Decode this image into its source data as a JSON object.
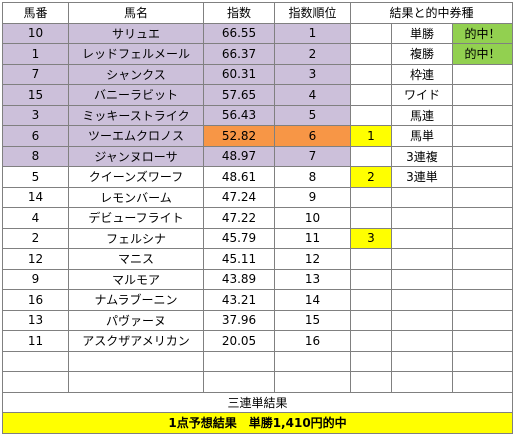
{
  "headers": {
    "col_no": "馬番",
    "col_name": "馬名",
    "col_index": "指数",
    "col_rank": "指数順位",
    "col_result": "結果と的中券種"
  },
  "rows": [
    {
      "no": "10",
      "name": "サリュエ",
      "index": "66.55",
      "rank": "1",
      "place": "",
      "ticket": "単勝",
      "hit": "的中！"
    },
    {
      "no": "1",
      "name": "レッドフェルメール",
      "index": "66.37",
      "rank": "2",
      "place": "",
      "ticket": "複勝",
      "hit": "的中！"
    },
    {
      "no": "7",
      "name": "シャンクス",
      "index": "60.31",
      "rank": "3",
      "place": "",
      "ticket": "枠連",
      "hit": ""
    },
    {
      "no": "15",
      "name": "バニーラビット",
      "index": "57.65",
      "rank": "4",
      "place": "",
      "ticket": "ワイド",
      "hit": ""
    },
    {
      "no": "3",
      "name": "ミッキーストライク",
      "index": "56.43",
      "rank": "5",
      "place": "",
      "ticket": "馬連",
      "hit": ""
    },
    {
      "no": "6",
      "name": "ツーエムクロノス",
      "index": "52.82",
      "rank": "6",
      "place": "1",
      "ticket": "馬単",
      "hit": ""
    },
    {
      "no": "8",
      "name": "ジャンヌローサ",
      "index": "48.97",
      "rank": "7",
      "place": "",
      "ticket": "3連複",
      "hit": ""
    },
    {
      "no": "5",
      "name": "クイーンズワーフ",
      "index": "48.61",
      "rank": "8",
      "place": "2",
      "ticket": "3連単",
      "hit": ""
    },
    {
      "no": "14",
      "name": "レモンバーム",
      "index": "47.24",
      "rank": "9",
      "place": "",
      "ticket": "",
      "hit": ""
    },
    {
      "no": "4",
      "name": "デビューフライト",
      "index": "47.22",
      "rank": "10",
      "place": "",
      "ticket": "",
      "hit": ""
    },
    {
      "no": "2",
      "name": "フェルシナ",
      "index": "45.79",
      "rank": "11",
      "place": "3",
      "ticket": "",
      "hit": ""
    },
    {
      "no": "12",
      "name": "マニス",
      "index": "45.11",
      "rank": "12",
      "place": "",
      "ticket": "",
      "hit": ""
    },
    {
      "no": "9",
      "name": "マルモア",
      "index": "43.89",
      "rank": "13",
      "place": "",
      "ticket": "",
      "hit": ""
    },
    {
      "no": "16",
      "name": "ナムラブーニン",
      "index": "43.21",
      "rank": "14",
      "place": "",
      "ticket": "",
      "hit": ""
    },
    {
      "no": "13",
      "name": "パヴァーヌ",
      "index": "37.96",
      "rank": "15",
      "place": "",
      "ticket": "",
      "hit": ""
    },
    {
      "no": "11",
      "name": "アスクザアメリカン",
      "index": "20.05",
      "rank": "16",
      "place": "",
      "ticket": "",
      "hit": ""
    }
  ],
  "footer": {
    "sanrentan_label": "三連単結果",
    "final_result": "1点予想結果　単勝1,410円的中"
  },
  "colors": {
    "highlight_purple": "#ccc0da",
    "highlight_orange": "#f79646",
    "place_yellow": "#ffff00",
    "hit_green": "#92d050"
  }
}
